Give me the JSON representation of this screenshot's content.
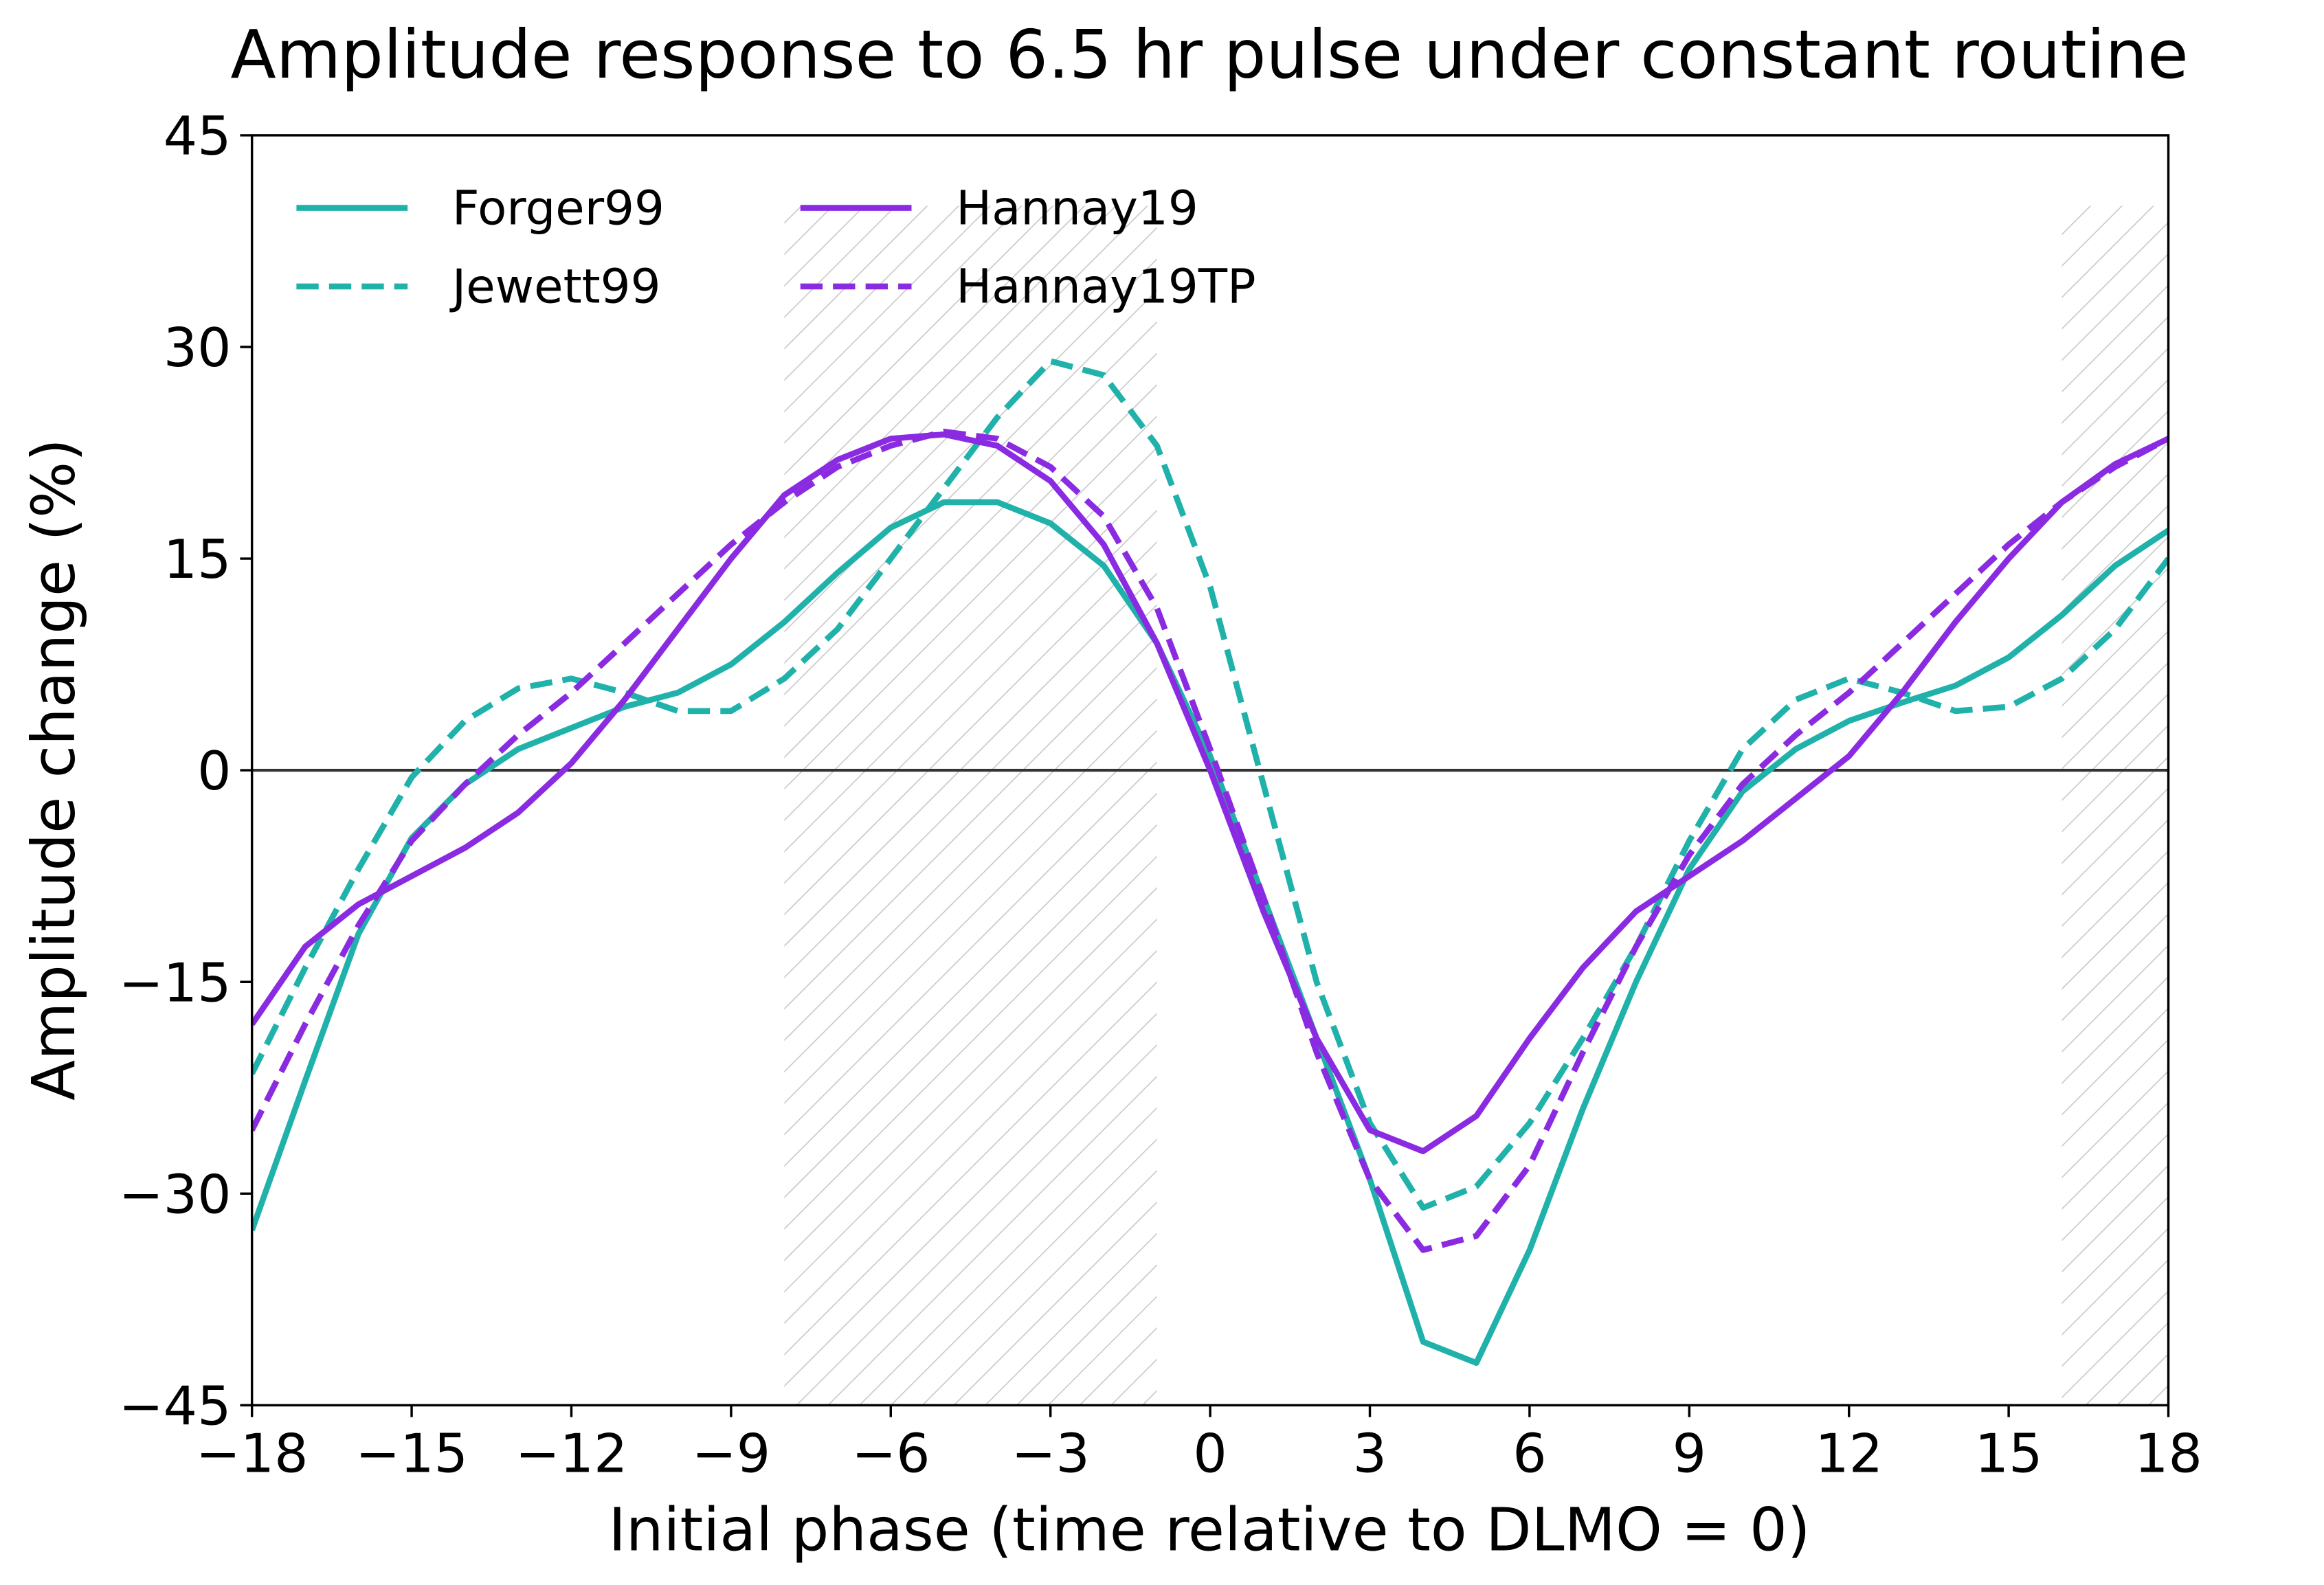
{
  "chart_data": {
    "type": "line",
    "title": "Amplitude response to 6.5 hr pulse under constant routine",
    "x_label": "Initial phase (time relative to DLMO = 0)",
    "y_label": "Amplitude change (%)",
    "x": [
      -18,
      -17,
      -16,
      -15,
      -14,
      -13,
      -12,
      -11,
      -10,
      -9,
      -8,
      -7,
      -6,
      -5,
      -4,
      -3,
      -2,
      -1,
      0,
      1,
      2,
      3,
      4,
      5,
      6,
      7,
      8,
      9,
      10,
      11,
      12,
      13,
      14,
      15,
      16,
      17,
      18
    ],
    "series": [
      {
        "name": "Forger99",
        "color": "#20b2aa",
        "linestyle": "solid",
        "values": [
          -32.6,
          -22,
          -11.6,
          -4.8,
          -1,
          1.5,
          3,
          4.5,
          5.5,
          7.5,
          10.5,
          14,
          17.2,
          19,
          19,
          17.5,
          14.5,
          9,
          1,
          -9,
          -19,
          -29,
          -40.5,
          -42,
          -34,
          -24,
          -15,
          -7,
          -1.5,
          1.5,
          3.5,
          4.8,
          6,
          8,
          11,
          14.5,
          17
        ]
      },
      {
        "name": "Jewett99",
        "color": "#20b2aa",
        "linestyle": "dashed",
        "values": [
          -21.5,
          -14,
          -7,
          -0.5,
          3.5,
          5.8,
          6.5,
          5.5,
          4.2,
          4.2,
          6.5,
          10,
          15,
          20,
          25,
          29,
          28,
          23,
          13,
          -1,
          -15,
          -25,
          -31,
          -29.5,
          -25,
          -19,
          -12.5,
          -5,
          1.5,
          5,
          6.5,
          5.5,
          4.2,
          4.5,
          6.5,
          10,
          15
        ]
      },
      {
        "name": "Hannay19",
        "color": "#8a2be2",
        "linestyle": "solid",
        "values": [
          -18,
          -12.5,
          -9.5,
          -7.5,
          -5.5,
          -3,
          0.5,
          5,
          10,
          15,
          19.5,
          22,
          23.5,
          23.8,
          23,
          20.5,
          16,
          9,
          0,
          -10,
          -19,
          -25.5,
          -27,
          -24.5,
          -19,
          -14,
          -10,
          -7.5,
          -5,
          -2,
          1,
          5.5,
          10.5,
          15,
          19,
          21.7,
          23.5
        ]
      },
      {
        "name": "Hannay19TP",
        "color": "#8a2be2",
        "linestyle": "dashed",
        "values": [
          -25.5,
          -18,
          -11,
          -5,
          -1,
          2.5,
          5.5,
          9,
          12.5,
          16,
          19,
          21.5,
          23,
          24,
          23.5,
          21.5,
          18,
          11.5,
          1.5,
          -9,
          -20,
          -29,
          -34,
          -33,
          -28,
          -20,
          -12.5,
          -6,
          -1,
          2.5,
          5.5,
          9,
          12.5,
          16,
          19,
          21.5,
          23.5
        ]
      }
    ],
    "xlim": [
      -18,
      18
    ],
    "xticks": [
      {
        "value": -18,
        "label": "−18"
      },
      {
        "value": -15,
        "label": "−15"
      },
      {
        "value": -12,
        "label": "−12"
      },
      {
        "value": -9,
        "label": "−9"
      },
      {
        "value": -6,
        "label": "−6"
      },
      {
        "value": -3,
        "label": "−3"
      },
      0,
      3,
      6,
      9,
      12,
      15,
      18
    ],
    "ylim": [
      -45,
      45
    ],
    "yticks": [
      {
        "value": -45,
        "label": "−45"
      },
      {
        "value": -30,
        "label": "−30"
      },
      {
        "value": -15,
        "label": "−15"
      },
      0,
      15,
      30,
      45
    ],
    "hline": 0,
    "shaded_spans": [
      {
        "x": [
          -8,
          -1
        ],
        "y": [
          -45,
          40
        ]
      },
      {
        "x": [
          16,
          18
        ],
        "y": [
          -45,
          40
        ]
      }
    ],
    "legend": "upper left",
    "grid": false
  }
}
